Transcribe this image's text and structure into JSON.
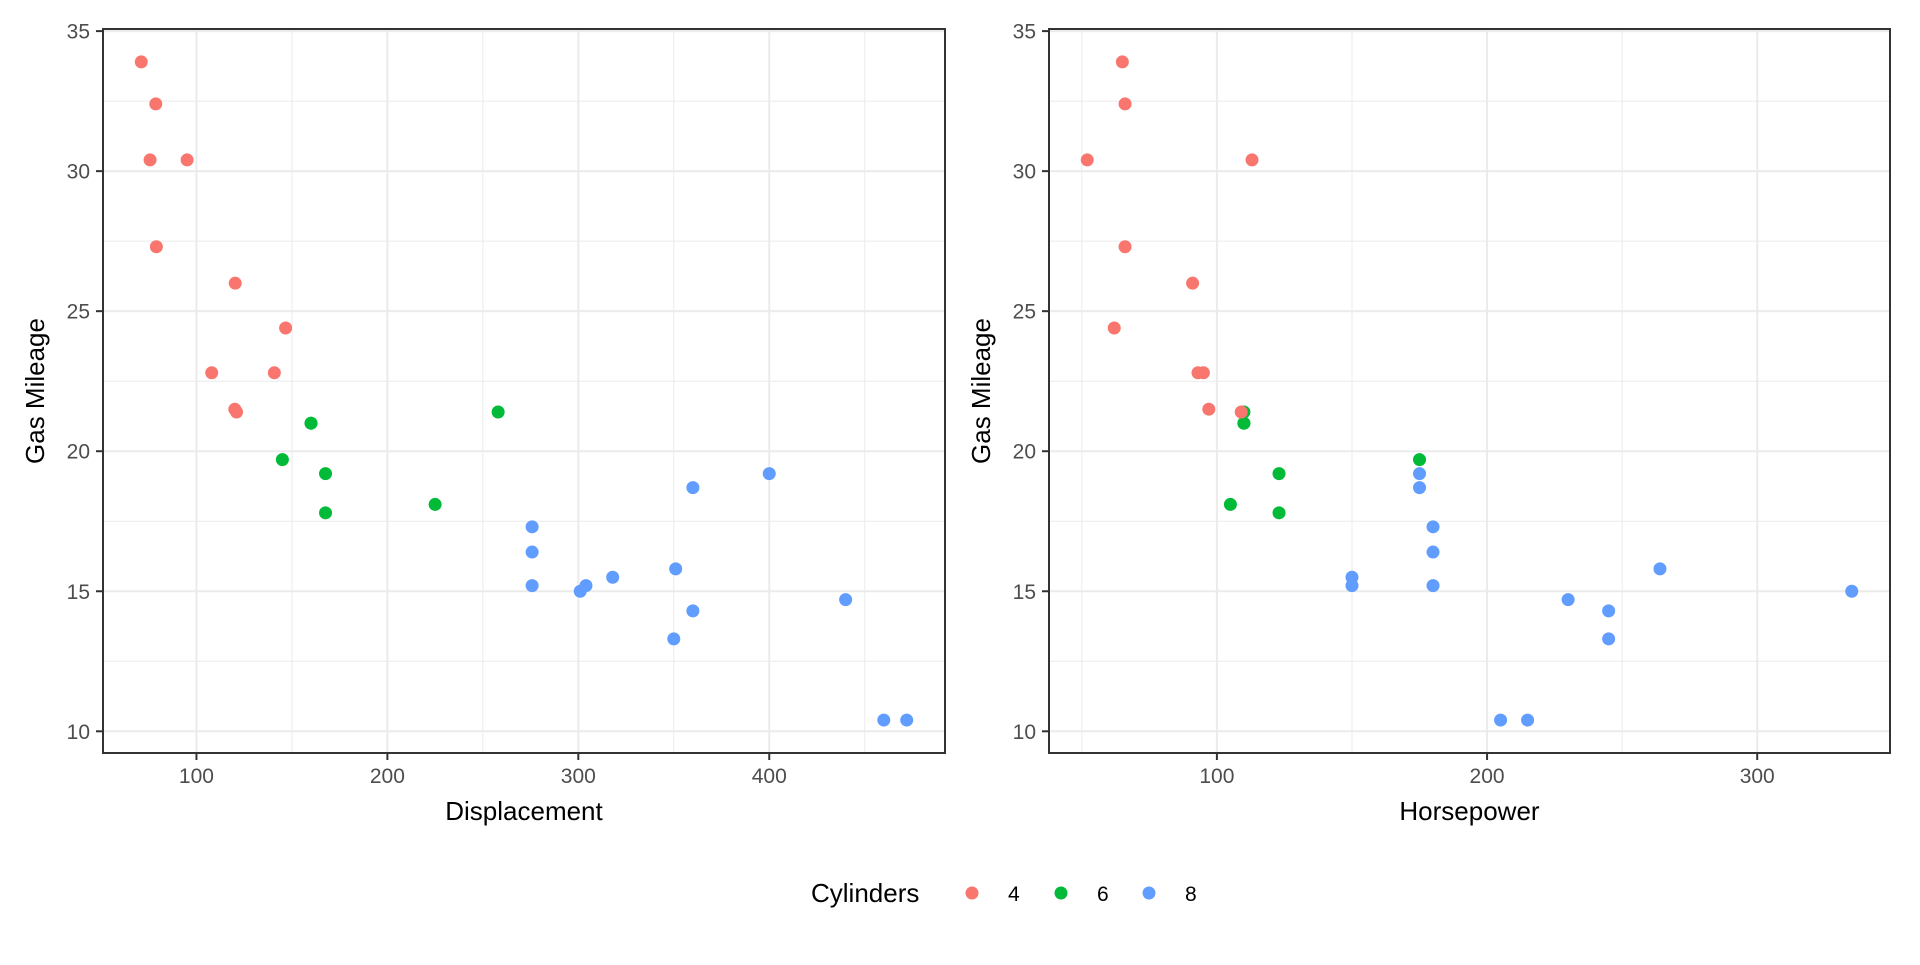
{
  "chart_data": {
    "type": "scatter",
    "legend": {
      "title": "Cylinders",
      "position": "bottom",
      "entries": [
        {
          "label": "4",
          "color": "#F8766D"
        },
        {
          "label": "6",
          "color": "#00BA38"
        },
        {
          "label": "8",
          "color": "#619CFF"
        }
      ]
    },
    "panels": [
      {
        "id": "displacement",
        "xlabel": "Displacement",
        "ylabel": "Gas Mileage",
        "xlim": [
          51.055,
          492.045
        ],
        "ylim": [
          9.225,
          35.075
        ],
        "xticks": [
          100,
          200,
          300,
          400
        ],
        "xtick_labels": [
          "100",
          "200",
          "300",
          "400"
        ],
        "xminor": [
          150,
          250,
          350,
          450
        ],
        "yticks": [
          10,
          15,
          20,
          25,
          30,
          35
        ],
        "ytick_labels": [
          "10",
          "15",
          "20",
          "25",
          "30",
          "35"
        ],
        "yminor": [
          12.5,
          17.5,
          22.5,
          27.5,
          32.5
        ],
        "grid": true
      },
      {
        "id": "horsepower",
        "xlabel": "Horsepower",
        "ylabel": "Gas Mileage",
        "xlim": [
          37.85,
          349.15
        ],
        "ylim": [
          9.225,
          35.075
        ],
        "xticks": [
          100,
          200,
          300
        ],
        "xtick_labels": [
          "100",
          "200",
          "300"
        ],
        "xminor": [
          50,
          150,
          250
        ],
        "yticks": [
          10,
          15,
          20,
          25,
          30,
          35
        ],
        "ytick_labels": [
          "10",
          "15",
          "20",
          "25",
          "30",
          "35"
        ],
        "yminor": [
          12.5,
          17.5,
          22.5,
          27.5,
          32.5
        ],
        "grid": true
      }
    ],
    "points": [
      {
        "mpg": 21.0,
        "cyl": "6",
        "disp": 160.0,
        "hp": 110
      },
      {
        "mpg": 21.0,
        "cyl": "6",
        "disp": 160.0,
        "hp": 110
      },
      {
        "mpg": 22.8,
        "cyl": "4",
        "disp": 108.0,
        "hp": 93
      },
      {
        "mpg": 21.4,
        "cyl": "6",
        "disp": 258.0,
        "hp": 110
      },
      {
        "mpg": 18.7,
        "cyl": "8",
        "disp": 360.0,
        "hp": 175
      },
      {
        "mpg": 18.1,
        "cyl": "6",
        "disp": 225.0,
        "hp": 105
      },
      {
        "mpg": 14.3,
        "cyl": "8",
        "disp": 360.0,
        "hp": 245
      },
      {
        "mpg": 24.4,
        "cyl": "4",
        "disp": 146.7,
        "hp": 62
      },
      {
        "mpg": 22.8,
        "cyl": "4",
        "disp": 140.8,
        "hp": 95
      },
      {
        "mpg": 19.2,
        "cyl": "6",
        "disp": 167.6,
        "hp": 123
      },
      {
        "mpg": 17.8,
        "cyl": "6",
        "disp": 167.6,
        "hp": 123
      },
      {
        "mpg": 16.4,
        "cyl": "8",
        "disp": 275.8,
        "hp": 180
      },
      {
        "mpg": 17.3,
        "cyl": "8",
        "disp": 275.8,
        "hp": 180
      },
      {
        "mpg": 15.2,
        "cyl": "8",
        "disp": 275.8,
        "hp": 180
      },
      {
        "mpg": 10.4,
        "cyl": "8",
        "disp": 472.0,
        "hp": 205
      },
      {
        "mpg": 10.4,
        "cyl": "8",
        "disp": 460.0,
        "hp": 215
      },
      {
        "mpg": 14.7,
        "cyl": "8",
        "disp": 440.0,
        "hp": 230
      },
      {
        "mpg": 32.4,
        "cyl": "4",
        "disp": 78.7,
        "hp": 66
      },
      {
        "mpg": 30.4,
        "cyl": "4",
        "disp": 75.7,
        "hp": 52
      },
      {
        "mpg": 33.9,
        "cyl": "4",
        "disp": 71.1,
        "hp": 65
      },
      {
        "mpg": 21.5,
        "cyl": "4",
        "disp": 120.1,
        "hp": 97
      },
      {
        "mpg": 15.5,
        "cyl": "8",
        "disp": 318.0,
        "hp": 150
      },
      {
        "mpg": 15.2,
        "cyl": "8",
        "disp": 304.0,
        "hp": 150
      },
      {
        "mpg": 13.3,
        "cyl": "8",
        "disp": 350.0,
        "hp": 245
      },
      {
        "mpg": 19.2,
        "cyl": "8",
        "disp": 400.0,
        "hp": 175
      },
      {
        "mpg": 27.3,
        "cyl": "4",
        "disp": 79.0,
        "hp": 66
      },
      {
        "mpg": 26.0,
        "cyl": "4",
        "disp": 120.3,
        "hp": 91
      },
      {
        "mpg": 30.4,
        "cyl": "4",
        "disp": 95.1,
        "hp": 113
      },
      {
        "mpg": 15.8,
        "cyl": "8",
        "disp": 351.0,
        "hp": 264
      },
      {
        "mpg": 19.7,
        "cyl": "6",
        "disp": 145.0,
        "hp": 175
      },
      {
        "mpg": 15.0,
        "cyl": "8",
        "disp": 301.0,
        "hp": 335
      },
      {
        "mpg": 21.4,
        "cyl": "4",
        "disp": 121.0,
        "hp": 109
      }
    ]
  }
}
